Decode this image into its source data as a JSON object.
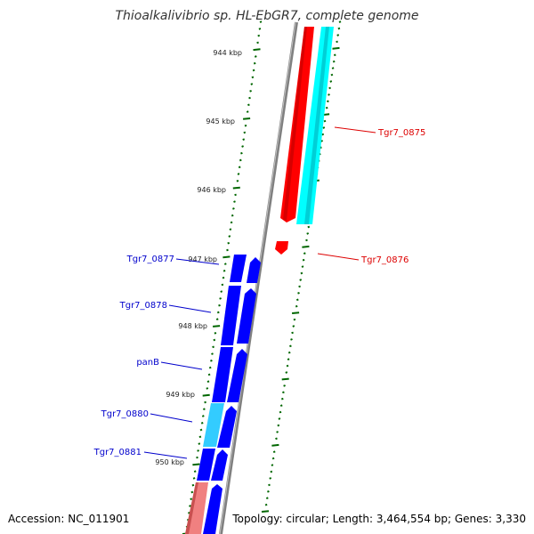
{
  "title": "Thioalkalivibrio sp. HL-EbGR7, complete genome",
  "ruler": {
    "ticks": [
      "944 kbp",
      "945 kbp",
      "946 kbp",
      "947 kbp",
      "948 kbp",
      "949 kbp",
      "950 kbp"
    ]
  },
  "genes": [
    {
      "label": "Tgr7_0875",
      "color": "#dd0000"
    },
    {
      "label": "Tgr7_0876",
      "color": "#dd0000"
    },
    {
      "label": "Tgr7_0877",
      "color": "#0000cc"
    },
    {
      "label": "Tgr7_0878",
      "color": "#0000cc"
    },
    {
      "label": "panB",
      "color": "#0000cc"
    },
    {
      "label": "Tgr7_0880",
      "color": "#0000cc"
    },
    {
      "label": "Tgr7_0881",
      "color": "#0000cc"
    }
  ],
  "colors": {
    "red_feature": "#ff0000",
    "cyan_feature": "#00ffff",
    "blue_feature": "#0000ff",
    "pink_feature": "#f08080",
    "backbone": "#808080",
    "tick_marks": "#006600"
  },
  "footer": {
    "accession": "Accession: NC_011901",
    "summary": "Topology: circular; Length: 3,464,554 bp; Genes: 3,330"
  }
}
